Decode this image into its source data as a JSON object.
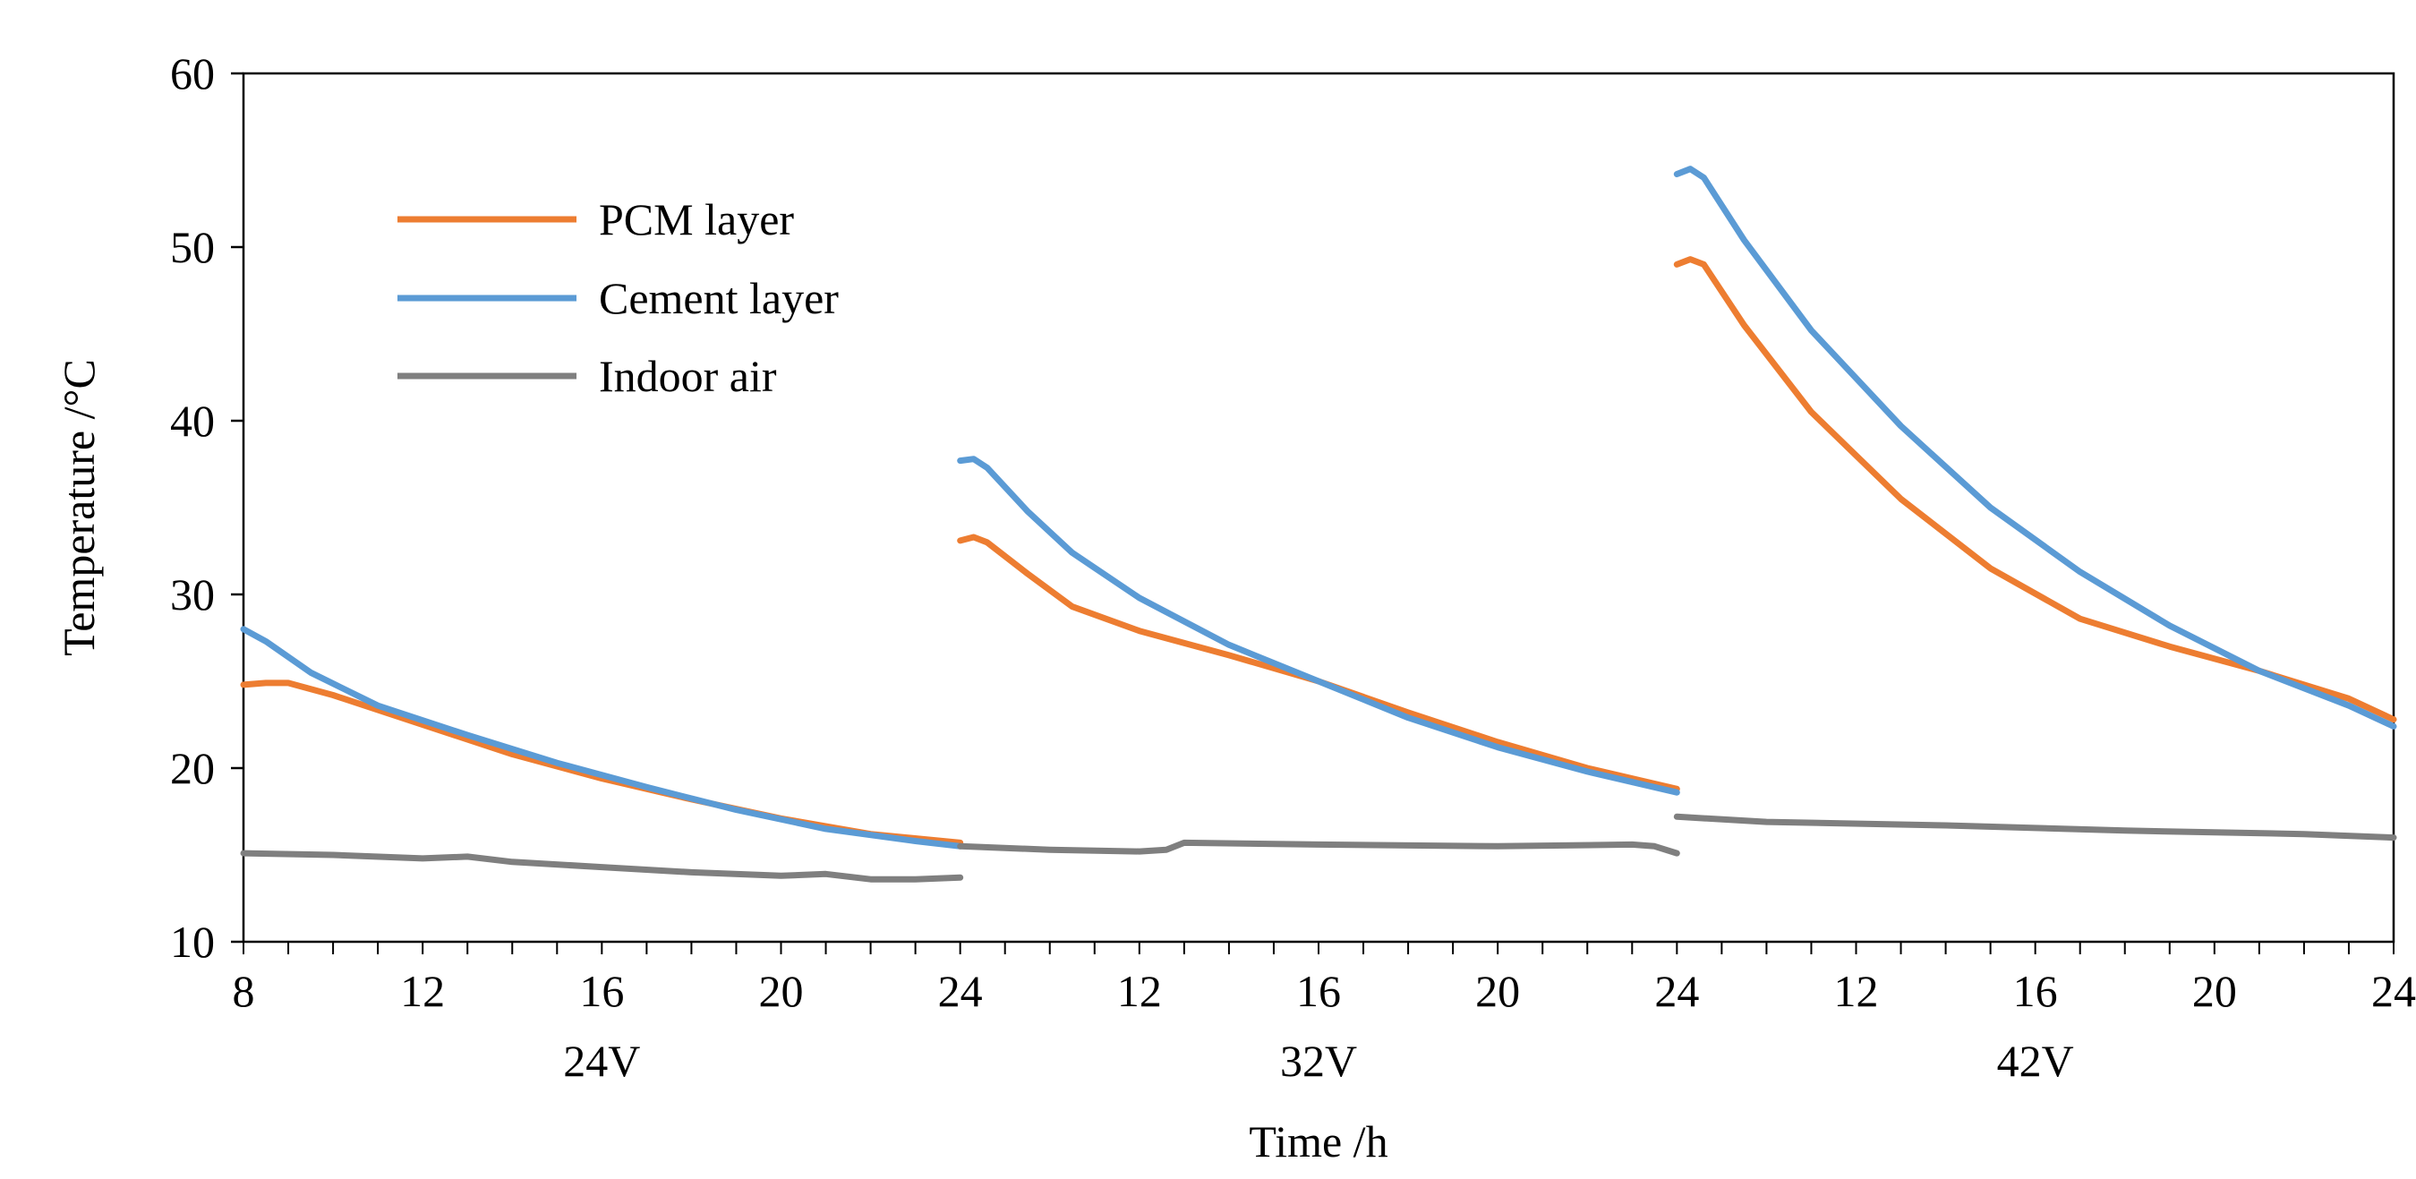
{
  "chart_data": {
    "type": "line",
    "ylabel": "Temperature /°C",
    "xlabel": "Time /h",
    "ylim": [
      10,
      60
    ],
    "yticks": [
      "10",
      "20",
      "30",
      "40",
      "50",
      "60"
    ],
    "x_hours_per_segment": [
      8,
      24
    ],
    "x_tick_labels": [
      "8",
      "12",
      "16",
      "20",
      "24",
      "12",
      "16",
      "20",
      "24",
      "12",
      "16",
      "20",
      "24"
    ],
    "segment_labels": [
      "24V",
      "32V",
      "42V"
    ],
    "legend_position": "top-left",
    "series": [
      {
        "name": "PCM layer",
        "color": "#ED7D31",
        "segments": [
          {
            "x": [
              8,
              8.5,
              9,
              10,
              12,
              14,
              16,
              18,
              20,
              22,
              24
            ],
            "y": [
              24.8,
              24.9,
              24.9,
              24.2,
              22.5,
              20.8,
              19.4,
              18.2,
              17.1,
              16.2,
              15.7
            ]
          },
          {
            "x": [
              8,
              8.3,
              8.6,
              9.5,
              10.5,
              12,
              14,
              16,
              18,
              20,
              22,
              24
            ],
            "y": [
              33.1,
              33.3,
              33.0,
              31.2,
              29.3,
              27.9,
              26.5,
              25.0,
              23.2,
              21.5,
              20.0,
              18.8
            ]
          },
          {
            "x": [
              8,
              8.3,
              8.6,
              9.5,
              11,
              13,
              15,
              17,
              19,
              21,
              23,
              24
            ],
            "y": [
              49.0,
              49.3,
              49.0,
              45.5,
              40.5,
              35.5,
              31.5,
              28.6,
              27.0,
              25.6,
              24.0,
              22.8
            ]
          }
        ]
      },
      {
        "name": "Cement layer",
        "color": "#5B9BD5",
        "segments": [
          {
            "x": [
              8,
              8.5,
              9.5,
              11,
              13,
              15,
              17,
              19,
              21,
              23,
              24
            ],
            "y": [
              28.0,
              27.3,
              25.5,
              23.6,
              21.9,
              20.3,
              18.9,
              17.6,
              16.5,
              15.8,
              15.5
            ]
          },
          {
            "x": [
              8,
              8.3,
              8.6,
              9.5,
              10.5,
              12,
              14,
              16,
              18,
              20,
              22,
              24
            ],
            "y": [
              37.7,
              37.8,
              37.3,
              34.8,
              32.4,
              29.8,
              27.1,
              25.0,
              22.9,
              21.2,
              19.8,
              18.6
            ]
          },
          {
            "x": [
              8,
              8.3,
              8.6,
              9.5,
              11,
              13,
              15,
              17,
              19,
              21,
              23,
              24
            ],
            "y": [
              54.2,
              54.5,
              54.0,
              50.4,
              45.2,
              39.7,
              35.0,
              31.3,
              28.2,
              25.6,
              23.6,
              22.4
            ]
          }
        ]
      },
      {
        "name": "Indoor air",
        "color": "#7F7F7F",
        "segments": [
          {
            "x": [
              8,
              10,
              12,
              13,
              14,
              16,
              18,
              20,
              21,
              22,
              23,
              24
            ],
            "y": [
              15.1,
              15.0,
              14.8,
              14.9,
              14.6,
              14.3,
              14.0,
              13.8,
              13.9,
              13.6,
              13.6,
              13.7
            ]
          },
          {
            "x": [
              8,
              10,
              12,
              12.6,
              13,
              16,
              20,
              23,
              23.5,
              24
            ],
            "y": [
              15.5,
              15.3,
              15.2,
              15.3,
              15.7,
              15.6,
              15.5,
              15.6,
              15.5,
              15.1
            ]
          },
          {
            "x": [
              8,
              10,
              14,
              18,
              22,
              24
            ],
            "y": [
              17.2,
              16.9,
              16.7,
              16.4,
              16.2,
              16.0
            ]
          }
        ]
      }
    ]
  }
}
